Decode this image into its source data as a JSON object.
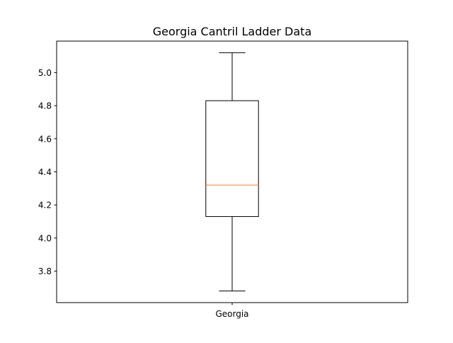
{
  "chart_data": {
    "type": "box",
    "title": "Georgia Cantril Ladder Data",
    "xlabel": "",
    "ylabel": "",
    "categories": [
      "Georgia"
    ],
    "boxes": [
      {
        "label": "Georgia",
        "whisker_low": 3.68,
        "q1": 4.13,
        "median": 4.32,
        "q3": 4.83,
        "whisker_high": 5.12
      }
    ],
    "ylim": [
      3.61,
      5.19
    ],
    "yticks": [
      3.8,
      4.0,
      4.2,
      4.4,
      4.6,
      4.8,
      5.0
    ],
    "ytick_labels": [
      "3.8",
      "4.0",
      "4.2",
      "4.4",
      "4.6",
      "4.8",
      "5.0"
    ],
    "grid": false,
    "colors": {
      "box": "#000000",
      "whisker": "#000000",
      "median": "#ff7f0e",
      "axes": "#000000"
    }
  }
}
